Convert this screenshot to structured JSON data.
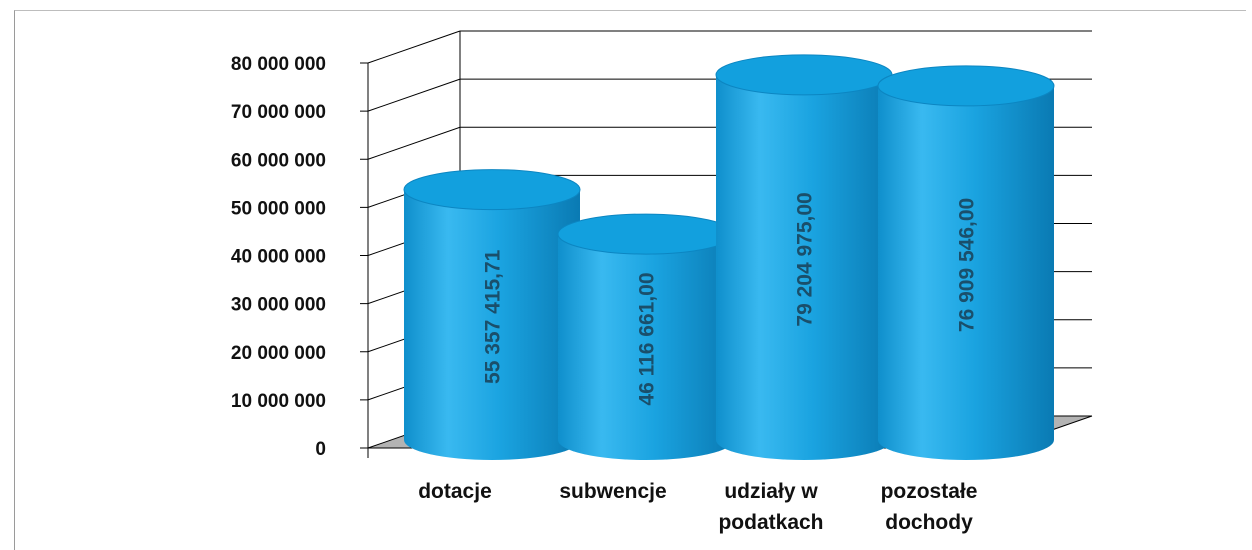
{
  "chart_data": {
    "type": "bar",
    "style": "3d-cylinder",
    "title": "",
    "xlabel": "",
    "ylabel": "",
    "categories": [
      [
        "dotacje"
      ],
      [
        "subwencje"
      ],
      [
        "udziały w",
        "podatkach"
      ],
      [
        "pozostałe",
        "dochody"
      ]
    ],
    "values": [
      55357415.71,
      46116661.0,
      79204975.0,
      76909546.0
    ],
    "data_labels": [
      "55 357 415,71",
      "46 116 661,00",
      "79 204 975,00",
      "76 909 546,00"
    ],
    "ylim": [
      0,
      80000000
    ],
    "y_ticks": [
      0,
      10000000,
      20000000,
      30000000,
      40000000,
      50000000,
      60000000,
      70000000,
      80000000
    ],
    "y_tick_labels": [
      "0",
      "10 000 000",
      "20 000 000",
      "30 000 000",
      "40 000 000",
      "50 000 000",
      "60 000 000",
      "70 000 000",
      "80 000 000"
    ],
    "grid": true,
    "legend": "none",
    "colors": {
      "bar_body": "#1aa3e0",
      "bar_light": "#49c3f5",
      "bar_dark": "#0a7fb8",
      "bar_top": "#12a0de",
      "label_color": "#1a4f6b",
      "grid": "#000000",
      "floor": "#b3b3b3"
    }
  }
}
